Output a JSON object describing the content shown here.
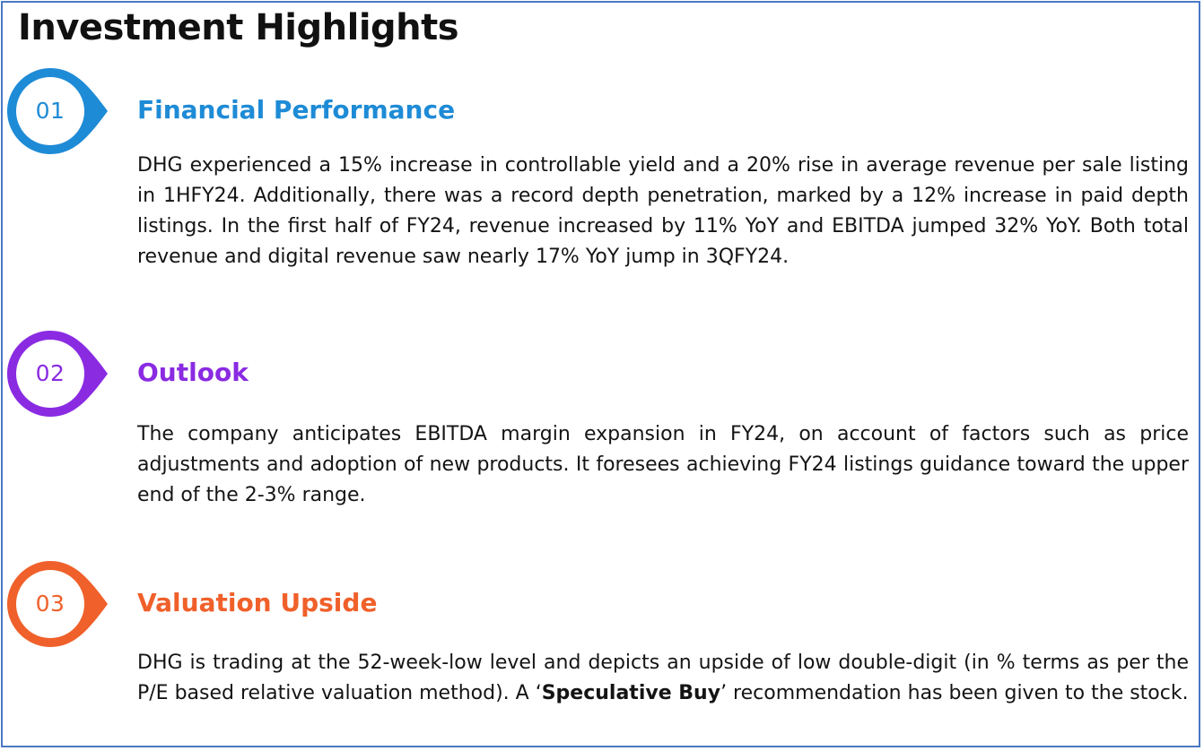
{
  "title": "Investment Highlights",
  "colors": {
    "frame": "#4a78c4",
    "section1": "#1e8bd6",
    "section2": "#8a2be2",
    "section3": "#f0602a"
  },
  "sections": [
    {
      "number": "01",
      "title": "Financial Performance",
      "body": "DHG experienced a 15% increase in controllable yield and a 20% rise in average revenue per sale listing in 1HFY24. Additionally, there was a record depth penetration, marked by a 12% increase in paid depth listings. In the first half of FY24, revenue increased by 11% YoY and EBITDA jumped 32% YoY. Both total revenue and digital revenue saw nearly 17% YoY jump in 3QFY24."
    },
    {
      "number": "02",
      "title": "Outlook",
      "body": "The company anticipates EBITDA margin expansion in FY24, on account of factors such as price adjustments and adoption of new products. It foresees achieving FY24 listings guidance toward the upper end of the 2-3% range."
    },
    {
      "number": "03",
      "title": "Valuation Upside",
      "body_before": "DHG is trading at the 52-week-low level and depicts an upside of low double-digit (in % terms as per the P/E based relative valuation method). A ‘",
      "body_bold": "Speculative Buy",
      "body_after": "’ recommendation has been given to the stock."
    }
  ]
}
